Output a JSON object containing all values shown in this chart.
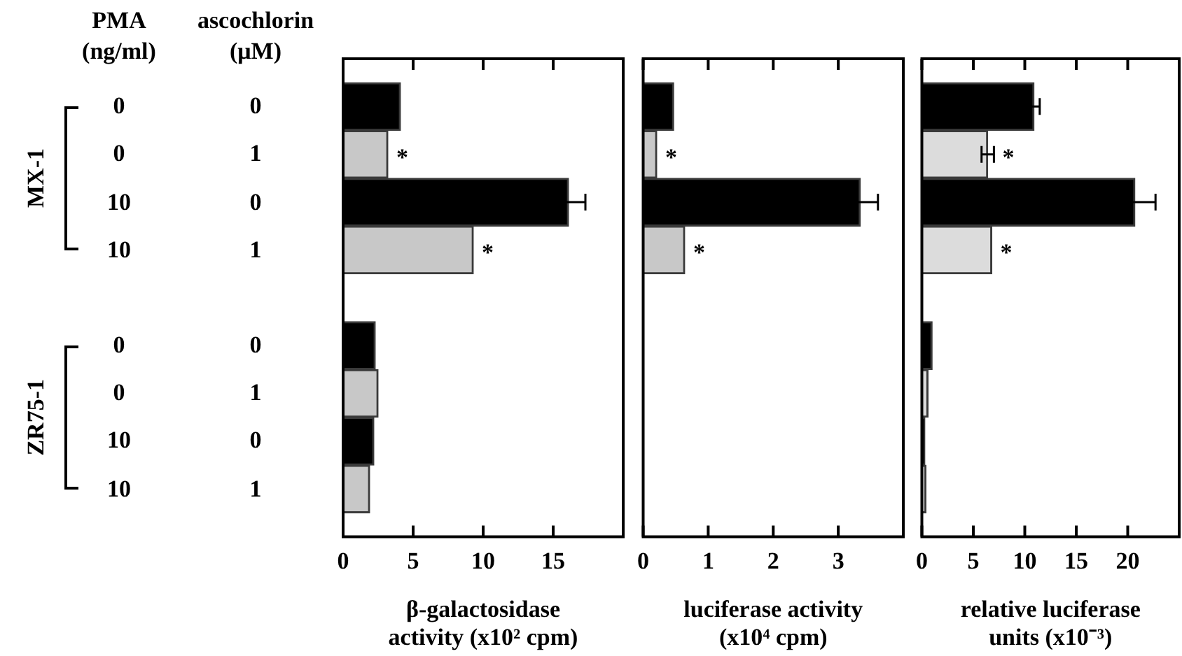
{
  "chart_data": [
    {
      "type": "bar",
      "orientation": "horizontal",
      "ylabel": "ascochlorin\n(μM)",
      "y2label": "PMA\n(ng/ml)",
      "categories": [
        "0",
        "1",
        "0",
        "1",
        null,
        "0",
        "1",
        "0",
        "1"
      ],
      "y2_categories": [
        "0",
        "0",
        "10",
        "10",
        null,
        "0",
        "0",
        "10",
        "10"
      ],
      "annotations": [
        "MX-1",
        "ZR75-1"
      ],
      "values": [
        4.1,
        3.2,
        16.1,
        9.3,
        null,
        2.3,
        2.5,
        2.2,
        1.9
      ],
      "colors": [
        "#000000",
        "#c8c8c8",
        "#000000",
        "#c8c8c8",
        null,
        "#000000",
        "#c8c8c8",
        "#000000",
        "#c8c8c8"
      ],
      "errors": [
        null,
        null,
        1.2,
        null,
        null,
        null,
        null,
        null,
        null
      ],
      "value_labels": [
        null,
        "*",
        null,
        "*",
        null,
        null,
        null,
        null,
        null
      ],
      "xlim": [
        0,
        20
      ],
      "xticks": [
        0,
        5,
        10,
        15
      ],
      "xlabel": "β-galactosidase\nactivity (x10² cpm)"
    },
    {
      "type": "bar",
      "orientation": "horizontal",
      "tick_labels": "x",
      "categories": [
        "0",
        "1",
        "0",
        "1",
        null,
        "0",
        "1",
        "0",
        "1"
      ],
      "values": [
        0.47,
        0.21,
        3.34,
        0.64,
        null,
        null,
        null,
        null,
        null
      ],
      "colors": [
        "#000000",
        "#c8c8c8",
        "#000000",
        "#c8c8c8",
        null,
        "#000000",
        "#c8c8c8",
        "#000000",
        "#c8c8c8"
      ],
      "errors": [
        null,
        null,
        0.27,
        null,
        null,
        null,
        null,
        null,
        null
      ],
      "value_labels": [
        null,
        "*",
        null,
        "*",
        null,
        null,
        null,
        null,
        null
      ],
      "xlim": [
        0,
        4
      ],
      "xticks": [
        0,
        1,
        2,
        3
      ],
      "xlabel": "luciferase activity\n(x10⁴ cpm)"
    },
    {
      "type": "bar",
      "orientation": "horizontal",
      "tick_labels": "x",
      "categories": [
        "0",
        "1",
        "0",
        "1",
        null,
        "0",
        "1",
        "0",
        "1"
      ],
      "values": [
        10.9,
        6.4,
        20.7,
        6.8,
        null,
        1.0,
        0.6,
        0.3,
        0.4
      ],
      "colors": [
        "#000000",
        "#dcdcdc",
        "#000000",
        "#dcdcdc",
        null,
        "#000000",
        "#dcdcdc",
        "#000000",
        "#dcdcdc"
      ],
      "errors": [
        0.55,
        0.6,
        2.0,
        null,
        null,
        null,
        null,
        null,
        null
      ],
      "value_labels": [
        null,
        "*",
        null,
        "*",
        null,
        null,
        null,
        null,
        null
      ],
      "xlim": [
        0,
        25
      ],
      "xticks": [
        0,
        5,
        10,
        15,
        20
      ],
      "xlabel": "relative luciferase\nunits (x10⁻³)"
    }
  ]
}
